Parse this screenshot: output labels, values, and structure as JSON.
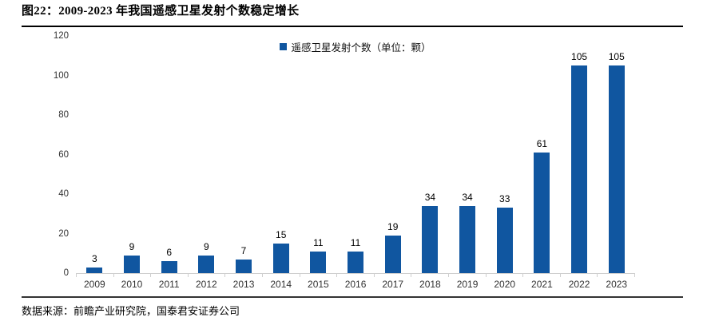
{
  "header": {
    "title": "图22：2009-2023 年我国遥感卫星发射个数稳定增长"
  },
  "footer": {
    "source": "数据来源：前瞻产业研究院，国泰君安证券公司"
  },
  "chart_data": {
    "type": "bar",
    "title": "图22：2009-2023 年我国遥感卫星发射个数稳定增长",
    "legend": "遥感卫星发射个数（单位：颗）",
    "categories": [
      "2009",
      "2010",
      "2011",
      "2012",
      "2013",
      "2014",
      "2015",
      "2016",
      "2017",
      "2018",
      "2019",
      "2020",
      "2021",
      "2022",
      "2023"
    ],
    "values": [
      3,
      9,
      6,
      9,
      7,
      15,
      11,
      11,
      19,
      34,
      34,
      33,
      61,
      105,
      105
    ],
    "xlabel": "",
    "ylabel": "",
    "ylim": [
      0,
      120
    ],
    "yticks": [
      0,
      20,
      40,
      60,
      80,
      100,
      120
    ],
    "grid": false,
    "legend_position": "top-center",
    "bar_color": "#1056A0",
    "axis_line_color": "#cfcfcf"
  }
}
